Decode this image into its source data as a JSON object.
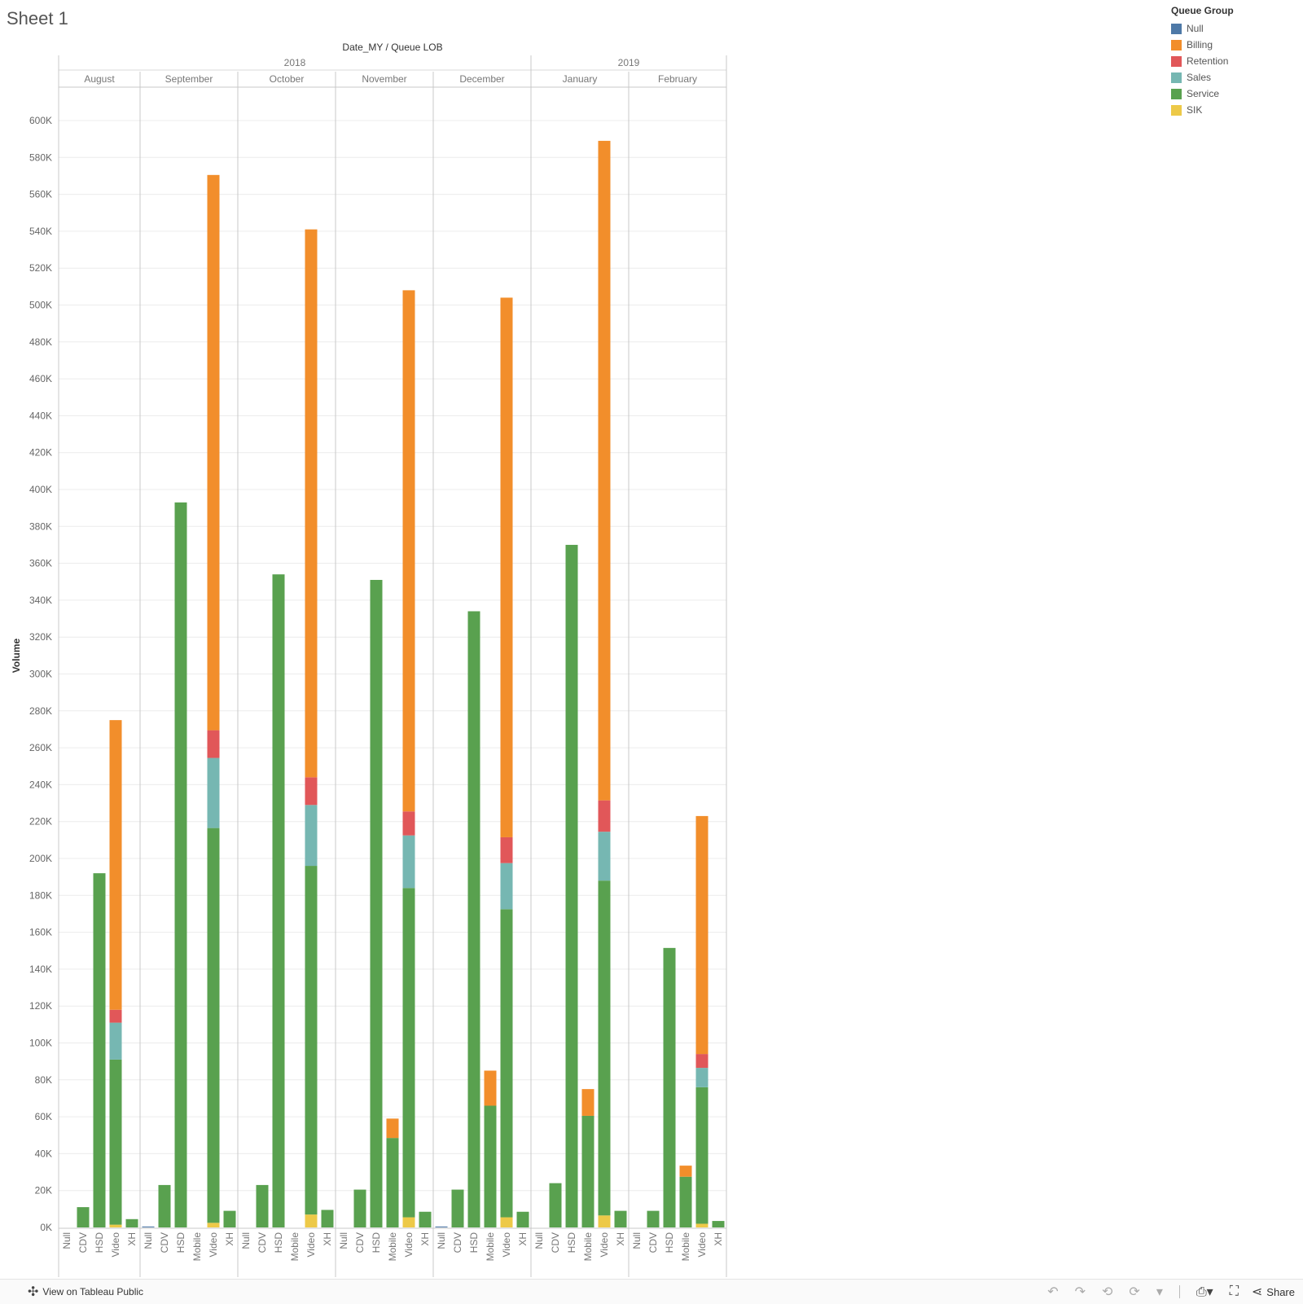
{
  "page": {
    "sheet_title": "Sheet 1"
  },
  "chart_data": {
    "type": "bar",
    "stacked": true,
    "column_header": "Date_MY  /  Queue LOB",
    "ylabel": "Volume",
    "ylim": [
      0,
      610000
    ],
    "yticks": [
      0,
      20000,
      40000,
      60000,
      80000,
      100000,
      120000,
      140000,
      160000,
      180000,
      200000,
      220000,
      240000,
      260000,
      280000,
      300000,
      320000,
      340000,
      360000,
      380000,
      400000,
      420000,
      440000,
      460000,
      480000,
      500000,
      520000,
      540000,
      560000,
      580000,
      600000
    ],
    "ytick_labels": [
      "0K",
      "20K",
      "40K",
      "60K",
      "80K",
      "100K",
      "120K",
      "140K",
      "160K",
      "180K",
      "200K",
      "220K",
      "240K",
      "260K",
      "280K",
      "300K",
      "320K",
      "340K",
      "360K",
      "380K",
      "400K",
      "420K",
      "440K",
      "460K",
      "480K",
      "500K",
      "520K",
      "540K",
      "560K",
      "580K",
      "600K"
    ],
    "grid": true,
    "legend_position": "top-right",
    "series_order": [
      "Null",
      "Billing",
      "Retention",
      "Sales",
      "Service",
      "SIK"
    ],
    "stack_order": [
      "SIK",
      "Null",
      "Service",
      "Sales",
      "Retention",
      "Billing"
    ],
    "years": [
      {
        "label": "2018",
        "months": [
          "August",
          "September",
          "October",
          "November",
          "December"
        ]
      },
      {
        "label": "2019",
        "months": [
          "January",
          "February"
        ]
      }
    ],
    "months": [
      {
        "month": "August",
        "bars": [
          {
            "lob": "Null",
            "values": {}
          },
          {
            "lob": "CDV",
            "values": {
              "Service": 11000
            }
          },
          {
            "lob": "HSD",
            "values": {
              "Service": 192000
            }
          },
          {
            "lob": "Video",
            "values": {
              "SIK": 1500,
              "Service": 89500,
              "Sales": 20000,
              "Retention": 7000,
              "Billing": 157000
            }
          },
          {
            "lob": "XH",
            "values": {
              "Service": 4500
            }
          }
        ]
      },
      {
        "month": "September",
        "bars": [
          {
            "lob": "Null",
            "values": {
              "Null": 500
            }
          },
          {
            "lob": "CDV",
            "values": {
              "Service": 23000
            }
          },
          {
            "lob": "HSD",
            "values": {
              "Service": 393000
            }
          },
          {
            "lob": "Mobile",
            "values": {}
          },
          {
            "lob": "Video",
            "values": {
              "SIK": 2500,
              "Service": 214000,
              "Sales": 38000,
              "Retention": 15000,
              "Billing": 301000
            }
          },
          {
            "lob": "XH",
            "values": {
              "Service": 9000
            }
          }
        ]
      },
      {
        "month": "October",
        "bars": [
          {
            "lob": "Null",
            "values": {}
          },
          {
            "lob": "CDV",
            "values": {
              "Service": 23000
            }
          },
          {
            "lob": "HSD",
            "values": {
              "Service": 354000
            }
          },
          {
            "lob": "Mobile",
            "values": {}
          },
          {
            "lob": "Video",
            "values": {
              "SIK": 7000,
              "Service": 189000,
              "Sales": 33000,
              "Retention": 15000,
              "Billing": 297000
            }
          },
          {
            "lob": "XH",
            "values": {
              "Service": 9500
            }
          }
        ]
      },
      {
        "month": "November",
        "bars": [
          {
            "lob": "Null",
            "values": {}
          },
          {
            "lob": "CDV",
            "values": {
              "Service": 20500
            }
          },
          {
            "lob": "HSD",
            "values": {
              "Service": 351000
            }
          },
          {
            "lob": "Mobile",
            "values": {
              "Service": 48500,
              "Billing": 10500
            }
          },
          {
            "lob": "Video",
            "values": {
              "SIK": 5500,
              "Service": 178500,
              "Sales": 28500,
              "Retention": 13000,
              "Billing": 282500
            }
          },
          {
            "lob": "XH",
            "values": {
              "Service": 8500
            }
          }
        ]
      },
      {
        "month": "December",
        "bars": [
          {
            "lob": "Null",
            "values": {
              "Null": 500
            }
          },
          {
            "lob": "CDV",
            "values": {
              "Service": 20500
            }
          },
          {
            "lob": "HSD",
            "values": {
              "Service": 334000
            }
          },
          {
            "lob": "Mobile",
            "values": {
              "Service": 66000,
              "Billing": 19000
            }
          },
          {
            "lob": "Video",
            "values": {
              "SIK": 5500,
              "Service": 167000,
              "Sales": 25000,
              "Retention": 14000,
              "Billing": 292500
            }
          },
          {
            "lob": "XH",
            "values": {
              "Service": 8500
            }
          }
        ]
      },
      {
        "month": "January",
        "bars": [
          {
            "lob": "Null",
            "values": {}
          },
          {
            "lob": "CDV",
            "values": {
              "Service": 24000
            }
          },
          {
            "lob": "HSD",
            "values": {
              "Service": 370000
            }
          },
          {
            "lob": "Mobile",
            "values": {
              "Service": 60500,
              "Billing": 14500
            }
          },
          {
            "lob": "Video",
            "values": {
              "SIK": 6500,
              "Service": 181500,
              "Sales": 26500,
              "Retention": 17000,
              "Billing": 357500
            }
          },
          {
            "lob": "XH",
            "values": {
              "Service": 9000
            }
          }
        ]
      },
      {
        "month": "February",
        "bars": [
          {
            "lob": "Null",
            "values": {}
          },
          {
            "lob": "CDV",
            "values": {
              "Service": 9000
            }
          },
          {
            "lob": "HSD",
            "values": {
              "Service": 151500
            }
          },
          {
            "lob": "Mobile",
            "values": {
              "Service": 27500,
              "Billing": 6000
            }
          },
          {
            "lob": "Video",
            "values": {
              "SIK": 2000,
              "Service": 74000,
              "Sales": 10500,
              "Retention": 7500,
              "Billing": 129000
            }
          },
          {
            "lob": "XH",
            "values": {
              "Service": 3500
            }
          }
        ]
      }
    ]
  },
  "legend": {
    "title": "Queue Group",
    "items": [
      {
        "label": "Null",
        "color": "#4e79a7"
      },
      {
        "label": "Billing",
        "color": "#f28e2b"
      },
      {
        "label": "Retention",
        "color": "#e15759"
      },
      {
        "label": "Sales",
        "color": "#76b7b2"
      },
      {
        "label": "Service",
        "color": "#59a14f"
      },
      {
        "label": "SIK",
        "color": "#edc948"
      }
    ]
  },
  "footer": {
    "link_label": "View on Tableau Public",
    "share_label": "Share",
    "icons": [
      "undo-icon",
      "redo-icon",
      "revert-icon",
      "refresh-icon",
      "dropdown-icon",
      "download-icon",
      "fullscreen-icon",
      "share-icon"
    ]
  }
}
